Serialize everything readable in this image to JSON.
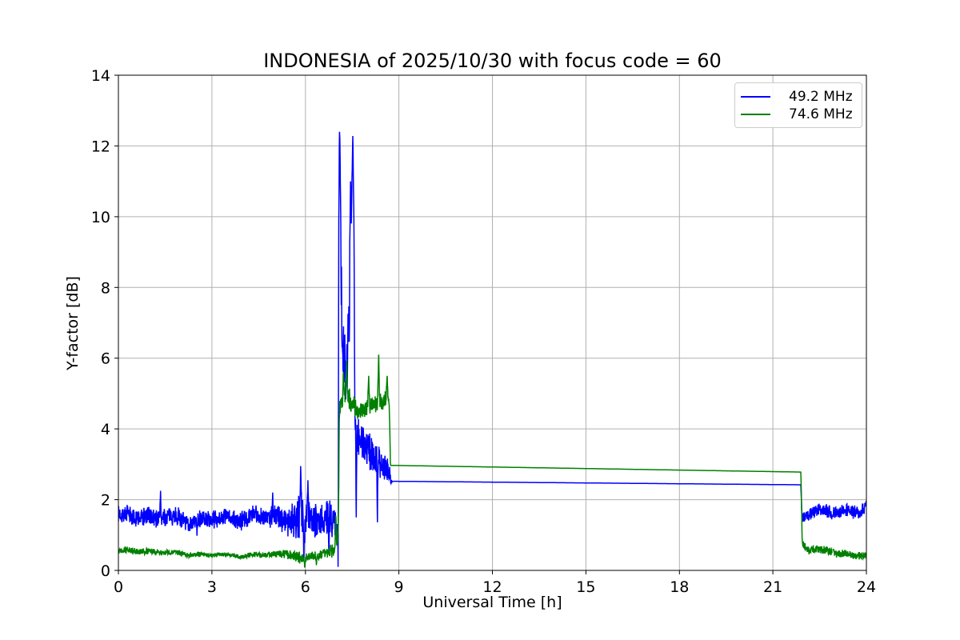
{
  "chart_data": {
    "type": "line",
    "title": "INDONESIA of 2025/10/30 with focus code = 60",
    "xlabel": "Universal Time [h]",
    "ylabel": "Y-factor [dB]",
    "xlim": [
      0,
      24
    ],
    "ylim": [
      0,
      14
    ],
    "x_ticks": [
      0,
      3,
      6,
      9,
      12,
      15,
      18,
      21,
      24
    ],
    "y_ticks": [
      0,
      2,
      4,
      6,
      8,
      10,
      12,
      14
    ],
    "grid": true,
    "grid_color": "#b0b0b0",
    "spine_color": "#000000",
    "background": "#ffffff",
    "legend_position": "upper right",
    "gaps": [
      {
        "x": 22.91,
        "w": 0.012
      }
    ],
    "series": [
      {
        "name": "49.2 MHz",
        "color": "#0000ff",
        "seed": 7,
        "step": 0.008,
        "wobble": 0.1,
        "summary": "Noisy ~1.5 dB band 0-7 UT, spikes to 12.4 dB at 7.1 UT and 12.3 dB at 7.5 UT, noisy decay ~3.5-2.6 dB until 8.8 UT, straight line 2.52 to 2.42 dB from 8.8 to 21.9 UT, then noisy ~1.7 dB band to 24 UT",
        "points": [
          [
            0.0,
            1.5,
            0.3
          ],
          [
            0.8,
            1.55,
            0.32
          ],
          [
            1.6,
            1.48,
            0.3
          ],
          [
            2.4,
            1.42,
            0.28
          ],
          [
            3.2,
            1.45,
            0.28
          ],
          [
            4.0,
            1.5,
            0.3
          ],
          [
            4.8,
            1.52,
            0.33
          ],
          [
            5.4,
            1.5,
            0.45
          ],
          [
            5.8,
            1.55,
            0.85
          ],
          [
            6.1,
            1.35,
            0.75
          ],
          [
            6.4,
            1.5,
            0.55
          ],
          [
            6.8,
            1.45,
            0.6
          ],
          [
            7.04,
            1.3,
            0.55
          ],
          [
            7.07,
            8.0,
            2.0
          ],
          [
            7.1,
            11.0,
            1.2
          ],
          [
            7.18,
            6.5,
            1.2
          ],
          [
            7.3,
            5.8,
            1.1
          ],
          [
            7.42,
            7.5,
            1.6
          ],
          [
            7.52,
            10.2,
            1.5
          ],
          [
            7.6,
            4.2,
            1.0
          ],
          [
            7.75,
            3.6,
            0.7
          ],
          [
            8.0,
            3.45,
            0.6
          ],
          [
            8.25,
            3.2,
            0.6
          ],
          [
            8.5,
            2.95,
            0.45
          ],
          [
            8.7,
            2.8,
            0.3
          ],
          [
            8.74,
            2.6,
            0.15
          ],
          [
            8.78,
            2.52,
            0.0
          ],
          [
            21.9,
            2.42,
            0.0
          ],
          [
            21.93,
            1.6,
            0.18
          ],
          [
            22.4,
            1.62,
            0.22
          ],
          [
            23.0,
            1.68,
            0.22
          ],
          [
            23.5,
            1.72,
            0.24
          ],
          [
            24.0,
            1.7,
            0.22
          ]
        ],
        "peaks": [
          {
            "x": 7.1,
            "y": 12.4,
            "w": 0.045
          },
          {
            "x": 7.52,
            "y": 12.28,
            "w": 0.06
          },
          {
            "x": 7.45,
            "y": 11.0,
            "w": 0.04
          },
          {
            "x": 5.85,
            "y": 2.95,
            "w": 0.03
          },
          {
            "x": 6.08,
            "y": 2.55,
            "w": 0.025
          },
          {
            "x": 1.35,
            "y": 2.25,
            "w": 0.025
          },
          {
            "x": 4.95,
            "y": 2.2,
            "w": 0.02
          },
          {
            "x": 5.95,
            "y": 0.3,
            "w": 0.03,
            "dir": "down"
          },
          {
            "x": 6.75,
            "y": 0.55,
            "w": 0.02,
            "dir": "down"
          },
          {
            "x": 7.05,
            "y": 0.1,
            "w": 0.015,
            "dir": "down"
          },
          {
            "x": 7.63,
            "y": 1.5,
            "w": 0.025,
            "dir": "down"
          },
          {
            "x": 8.31,
            "y": 1.36,
            "w": 0.02,
            "dir": "down"
          },
          {
            "x": 2.52,
            "y": 0.98,
            "w": 0.02,
            "dir": "down"
          }
        ]
      },
      {
        "name": "74.6 MHz",
        "color": "#008000",
        "seed": 13,
        "step": 0.008,
        "wobble": 0.035,
        "summary": "Noisy ~0.5 dB band 0-7 UT, jumps to ~4.8 dB band 7.1-8.7 UT with peaks to 6.1 dB, straight line 2.97 to 2.78 dB from 8.7 to 21.9 UT, then noisy ~0.5 dB band declining to ~0.4 dB at 24 UT",
        "points": [
          [
            0.0,
            0.55,
            0.11
          ],
          [
            1.0,
            0.54,
            0.1
          ],
          [
            2.0,
            0.47,
            0.09
          ],
          [
            3.0,
            0.43,
            0.08
          ],
          [
            4.0,
            0.42,
            0.08
          ],
          [
            5.0,
            0.45,
            0.1
          ],
          [
            5.5,
            0.48,
            0.16
          ],
          [
            5.9,
            0.32,
            0.2
          ],
          [
            6.2,
            0.4,
            0.14
          ],
          [
            6.6,
            0.48,
            0.16
          ],
          [
            6.95,
            0.6,
            0.3
          ],
          [
            7.06,
            0.9,
            0.4
          ],
          [
            7.09,
            4.6,
            0.3
          ],
          [
            7.25,
            4.85,
            0.4
          ],
          [
            7.45,
            4.8,
            0.4
          ],
          [
            7.65,
            4.45,
            0.3
          ],
          [
            7.85,
            4.5,
            0.28
          ],
          [
            8.05,
            4.65,
            0.3
          ],
          [
            8.3,
            4.75,
            0.35
          ],
          [
            8.55,
            4.8,
            0.3
          ],
          [
            8.66,
            4.88,
            0.22
          ],
          [
            8.7,
            4.4,
            0.15
          ],
          [
            8.73,
            2.97,
            0.0
          ],
          [
            21.9,
            2.78,
            0.0
          ],
          [
            21.94,
            0.8,
            0.15
          ],
          [
            22.1,
            0.62,
            0.15
          ],
          [
            22.6,
            0.55,
            0.14
          ],
          [
            23.2,
            0.48,
            0.13
          ],
          [
            23.7,
            0.44,
            0.12
          ],
          [
            24.0,
            0.42,
            0.12
          ]
        ],
        "peaks": [
          {
            "x": 7.32,
            "y": 5.95,
            "w": 0.04
          },
          {
            "x": 8.35,
            "y": 6.1,
            "w": 0.035
          },
          {
            "x": 8.03,
            "y": 5.5,
            "w": 0.03
          },
          {
            "x": 8.62,
            "y": 5.5,
            "w": 0.03
          },
          {
            "x": 7.22,
            "y": 5.6,
            "w": 0.03
          },
          {
            "x": 6.98,
            "y": 1.55,
            "w": 0.025
          },
          {
            "x": 7.065,
            "y": 1.95,
            "w": 0.02
          },
          {
            "x": 5.98,
            "y": 0.08,
            "w": 0.03,
            "dir": "down"
          },
          {
            "x": 6.35,
            "y": 0.15,
            "w": 0.02,
            "dir": "down"
          }
        ]
      }
    ]
  }
}
